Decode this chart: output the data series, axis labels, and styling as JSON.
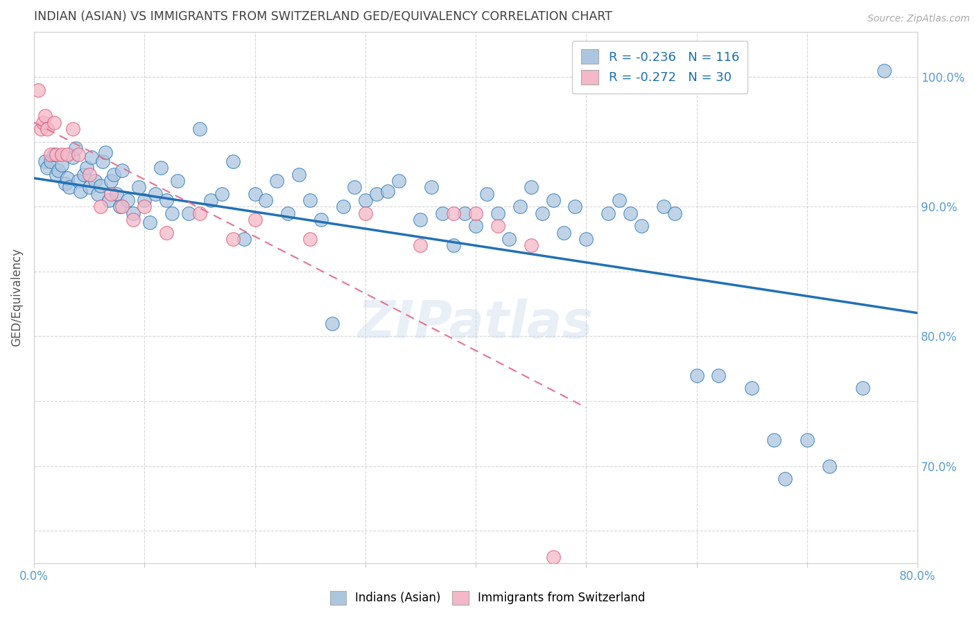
{
  "title": "INDIAN (ASIAN) VS IMMIGRANTS FROM SWITZERLAND GED/EQUIVALENCY CORRELATION CHART",
  "source": "Source: ZipAtlas.com",
  "ylabel": "GED/Equivalency",
  "xlim": [
    0.0,
    80.0
  ],
  "ylim": [
    0.625,
    1.035
  ],
  "blue_color": "#adc6e0",
  "blue_line_color": "#2171b5",
  "pink_color": "#f4b8c8",
  "pink_line_color": "#e05070",
  "pink_trend_color": "#e87090",
  "axis_label_color": "#5b9bd5",
  "title_color": "#404040",
  "blue_trend_y_start": 0.922,
  "blue_trend_y_end": 0.818,
  "pink_trend_x_start": 0.0,
  "pink_trend_x_end": 50.0,
  "pink_trend_y_start": 0.965,
  "pink_trend_y_end": 0.745,
  "blue_scatter_x": [
    1.0,
    1.2,
    1.5,
    1.8,
    2.0,
    2.2,
    2.5,
    2.8,
    3.0,
    3.2,
    3.5,
    3.8,
    4.0,
    4.2,
    4.5,
    4.8,
    5.0,
    5.2,
    5.5,
    5.8,
    6.0,
    6.2,
    6.5,
    6.8,
    7.0,
    7.2,
    7.5,
    7.8,
    8.0,
    8.5,
    9.0,
    9.5,
    10.0,
    10.5,
    11.0,
    11.5,
    12.0,
    12.5,
    13.0,
    14.0,
    15.0,
    16.0,
    17.0,
    18.0,
    19.0,
    20.0,
    21.0,
    22.0,
    23.0,
    24.0,
    25.0,
    26.0,
    27.0,
    28.0,
    29.0,
    30.0,
    31.0,
    32.0,
    33.0,
    35.0,
    36.0,
    37.0,
    38.0,
    39.0,
    40.0,
    41.0,
    42.0,
    43.0,
    44.0,
    45.0,
    46.0,
    47.0,
    48.0,
    49.0,
    50.0,
    52.0,
    53.0,
    54.0,
    55.0,
    57.0,
    58.0,
    60.0,
    62.0,
    65.0,
    67.0,
    68.0,
    70.0,
    72.0,
    75.0,
    77.0
  ],
  "blue_scatter_y": [
    0.935,
    0.93,
    0.935,
    0.94,
    0.925,
    0.928,
    0.932,
    0.918,
    0.922,
    0.915,
    0.938,
    0.945,
    0.92,
    0.912,
    0.925,
    0.93,
    0.915,
    0.938,
    0.92,
    0.91,
    0.916,
    0.935,
    0.942,
    0.905,
    0.92,
    0.925,
    0.91,
    0.9,
    0.928,
    0.905,
    0.895,
    0.915,
    0.905,
    0.888,
    0.91,
    0.93,
    0.905,
    0.895,
    0.92,
    0.895,
    0.96,
    0.905,
    0.91,
    0.935,
    0.875,
    0.91,
    0.905,
    0.92,
    0.895,
    0.925,
    0.905,
    0.89,
    0.81,
    0.9,
    0.915,
    0.905,
    0.91,
    0.912,
    0.92,
    0.89,
    0.915,
    0.895,
    0.87,
    0.895,
    0.885,
    0.91,
    0.895,
    0.875,
    0.9,
    0.915,
    0.895,
    0.905,
    0.88,
    0.9,
    0.875,
    0.895,
    0.905,
    0.895,
    0.885,
    0.9,
    0.895,
    0.77,
    0.77,
    0.76,
    0.72,
    0.69,
    0.72,
    0.7,
    0.76,
    1.005
  ],
  "pink_scatter_x": [
    0.4,
    0.6,
    0.8,
    1.0,
    1.2,
    1.5,
    1.8,
    2.0,
    2.5,
    3.0,
    3.5,
    4.0,
    5.0,
    6.0,
    7.0,
    8.0,
    9.0,
    10.0,
    12.0,
    15.0,
    18.0,
    20.0,
    25.0,
    30.0,
    35.0,
    38.0,
    40.0,
    42.0,
    45.0,
    47.0
  ],
  "pink_scatter_y": [
    0.99,
    0.96,
    0.965,
    0.97,
    0.96,
    0.94,
    0.965,
    0.94,
    0.94,
    0.94,
    0.96,
    0.94,
    0.925,
    0.9,
    0.91,
    0.9,
    0.89,
    0.9,
    0.88,
    0.895,
    0.875,
    0.89,
    0.875,
    0.895,
    0.87,
    0.895,
    0.895,
    0.885,
    0.87,
    0.63
  ]
}
